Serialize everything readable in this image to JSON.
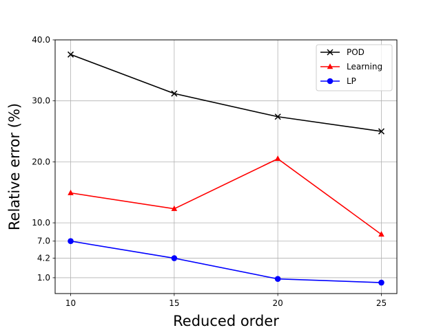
{
  "chart_data": {
    "type": "line",
    "title": "",
    "xlabel": "Reduced order",
    "ylabel": "Relative error (%)",
    "x": [
      10,
      15,
      20,
      25
    ],
    "xticks": [
      "10",
      "15",
      "20",
      "25"
    ],
    "yticks": [
      1.0,
      4.2,
      7.0,
      10.0,
      20.0,
      30.0,
      40.0
    ],
    "ytick_labels": [
      "1.0",
      "4.2",
      "7.0",
      "10.0",
      "20.0",
      "30.0",
      "40.0"
    ],
    "xlim": [
      9.25,
      25.75
    ],
    "ylim": [
      -1.6,
      40.0
    ],
    "grid": true,
    "legend_position": "top-right",
    "series": [
      {
        "name": "POD",
        "values": [
          37.6,
          31.2,
          27.4,
          25.0
        ],
        "color": "#000000",
        "marker": "x"
      },
      {
        "name": "Learning",
        "values": [
          14.9,
          12.3,
          20.5,
          8.1
        ],
        "color": "#ff0000",
        "marker": "triangle"
      },
      {
        "name": "LP",
        "values": [
          7.0,
          4.2,
          0.8,
          0.2
        ],
        "color": "#0000ff",
        "marker": "circle"
      }
    ]
  }
}
